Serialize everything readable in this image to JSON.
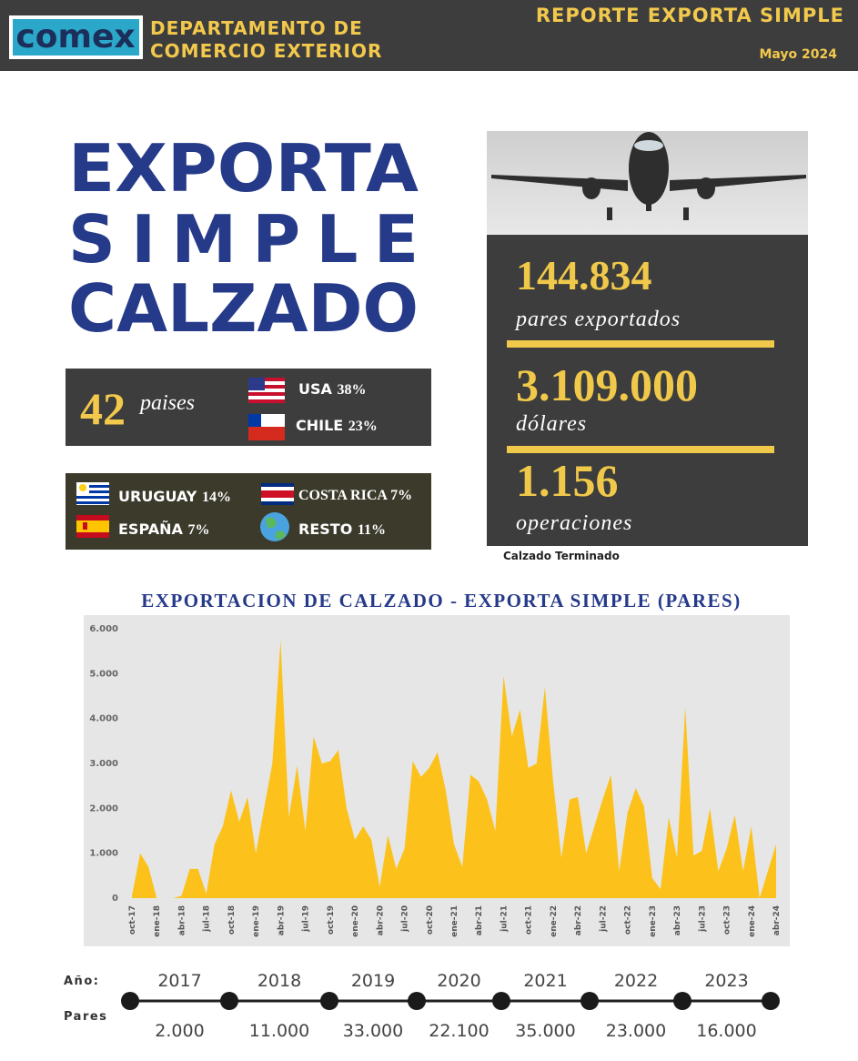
{
  "header": {
    "logo": "comex",
    "department": [
      "DEPARTAMENTO DE",
      "COMERCIO EXTERIOR"
    ],
    "report": "REPORTE EXPORTA SIMPLE",
    "date": "Mayo 2024"
  },
  "hero": {
    "lines": [
      "EXPORTA",
      "SIMPLE",
      "CALZADO"
    ]
  },
  "countries": {
    "count": "42",
    "count_label": "paises",
    "top": [
      {
        "name": "USA",
        "share": "38%"
      },
      {
        "name": "CHILE",
        "share": "23%"
      }
    ],
    "others": [
      {
        "name": "URUGUAY",
        "share": "14%"
      },
      {
        "name": "COSTA RICA",
        "share": "7%"
      },
      {
        "name": "ESPAÑA",
        "share": "7%"
      },
      {
        "name": "RESTO",
        "share": "11%"
      }
    ]
  },
  "stats": [
    {
      "value": "144.834",
      "label": "pares exportados"
    },
    {
      "value": "3.109.000",
      "label": "dólares"
    },
    {
      "value": "1.156",
      "label": "operaciones"
    }
  ],
  "stats_note": "Calzado Terminado",
  "chart_data": {
    "type": "area",
    "title": "EXPORTACION DE CALZADO - EXPORTA SIMPLE (PARES)",
    "color": "#fcc21b",
    "grid": false,
    "categories": [
      "oct-17",
      null,
      null,
      "ene-18",
      null,
      null,
      "abr-18",
      null,
      null,
      "jul-18",
      null,
      null,
      "oct-18",
      null,
      null,
      "ene-19",
      null,
      null,
      "abr-19",
      null,
      null,
      "jul-19",
      null,
      null,
      "oct-19",
      null,
      null,
      "ene-20",
      null,
      null,
      "abr-20",
      null,
      null,
      "jul-20",
      null,
      null,
      "oct-20",
      null,
      null,
      "ene-21",
      null,
      null,
      "abr-21",
      null,
      null,
      "jul-21",
      null,
      null,
      "oct-21",
      null,
      null,
      "ene-22",
      null,
      null,
      "abr-22",
      null,
      null,
      "jul-22",
      null,
      null,
      "oct-22",
      null,
      null,
      "ene-23",
      null,
      null,
      "abr-23",
      null,
      null,
      "jul-23",
      null,
      null,
      "oct-23",
      null,
      null,
      "ene-24",
      null,
      null,
      "abr-24"
    ],
    "values": [
      50,
      1000,
      700,
      0,
      0,
      0,
      50,
      650,
      650,
      100,
      1200,
      1600,
      2400,
      1700,
      2250,
      1000,
      2000,
      3000,
      5750,
      1800,
      2950,
      1500,
      3600,
      3000,
      3050,
      3300,
      2000,
      1300,
      1600,
      1300,
      250,
      1400,
      650,
      1100,
      3050,
      2700,
      2900,
      3250,
      2400,
      1200,
      700,
      2750,
      2600,
      2200,
      1500,
      4950,
      3600,
      4200,
      2900,
      3000,
      4700,
      2600,
      900,
      2200,
      2250,
      1000,
      1600,
      2200,
      2750,
      600,
      1900,
      2450,
      2050,
      450,
      200,
      1800,
      900,
      4250,
      950,
      1050,
      2000,
      600,
      1100,
      1850,
      600,
      1600,
      0,
      600,
      1200
    ],
    "ylim": [
      0,
      6000
    ],
    "yticks": [
      0,
      {
        "value": 1000,
        "label": "1.000"
      },
      {
        "value": 2000,
        "label": "2.000"
      },
      {
        "value": 3000,
        "label": "3.000"
      },
      {
        "value": 4000,
        "label": "4.000"
      },
      {
        "value": 5000,
        "label": "5.000"
      },
      {
        "value": 6000,
        "label": "6.000"
      }
    ]
  },
  "timeline": {
    "year_label": "Año:",
    "pares_label": "Pares",
    "periods": [
      {
        "year": "2017",
        "pares": "2.000"
      },
      {
        "year": "2018",
        "pares": "11.000"
      },
      {
        "year": "2019",
        "pares": "33.000"
      },
      {
        "year": "2020",
        "pares": "22.100"
      },
      {
        "year": "2021",
        "pares": "35.000"
      },
      {
        "year": "2022",
        "pares": "23.000"
      },
      {
        "year": "2023",
        "pares": "16.000"
      }
    ]
  }
}
